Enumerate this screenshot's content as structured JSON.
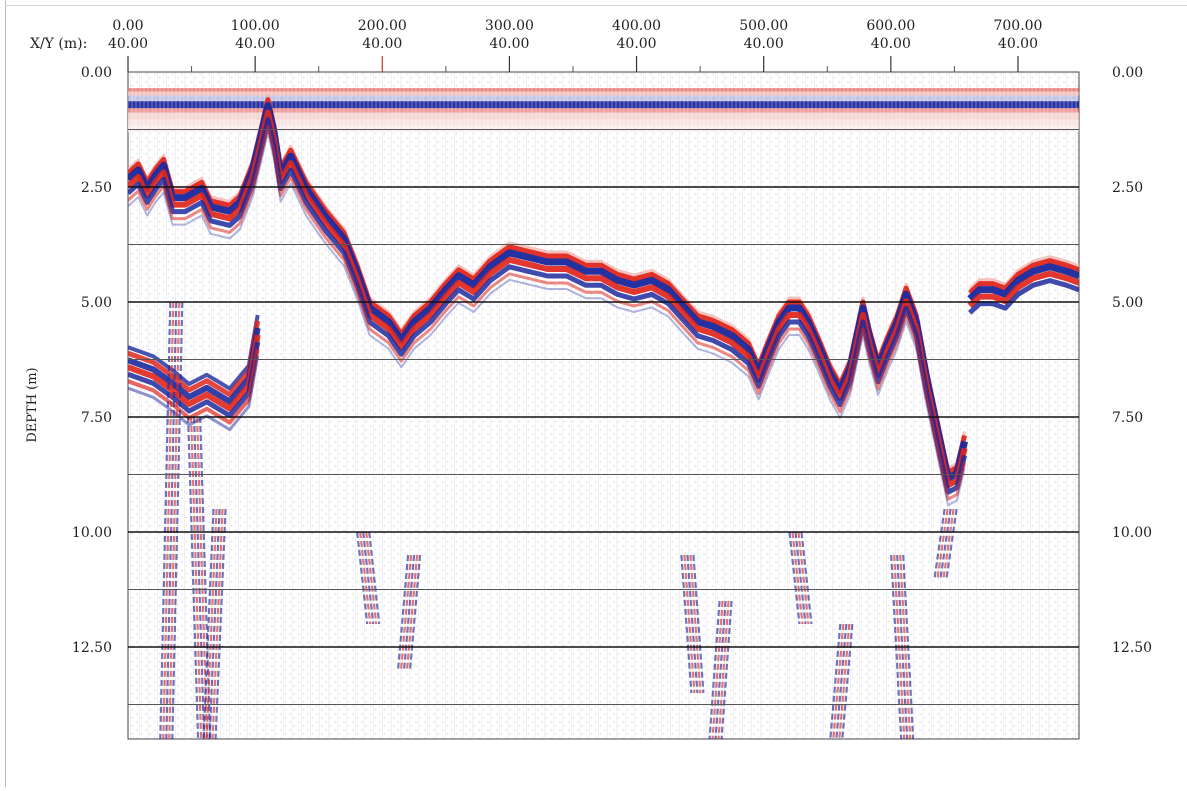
{
  "chart_data": {
    "type": "heatmap",
    "title": "",
    "xlabel_prefix": "X/Y (m):",
    "ylabel": "DEPTH (m)",
    "x_ticks": [
      {
        "x": "0.00",
        "y": "40.00"
      },
      {
        "x": "100.00",
        "y": "40.00"
      },
      {
        "x": "200.00",
        "y": "40.00"
      },
      {
        "x": "300.00",
        "y": "40.00"
      },
      {
        "x": "400.00",
        "y": "40.00"
      },
      {
        "x": "500.00",
        "y": "40.00"
      },
      {
        "x": "600.00",
        "y": "40.00"
      },
      {
        "x": "700.00",
        "y": "40.00"
      }
    ],
    "x_tick_values": [
      0,
      100,
      200,
      300,
      400,
      500,
      600,
      700
    ],
    "xlim": [
      0,
      748
    ],
    "y_ticks": [
      "0.00",
      "2.50",
      "5.00",
      "7.50",
      "10.00",
      "12.50"
    ],
    "y_tick_values": [
      0,
      2.5,
      5,
      7.5,
      10,
      12.5
    ],
    "ylim": [
      0,
      14.5
    ],
    "y_inverted": true,
    "grid": true,
    "colormap": {
      "positive": "#e0261c",
      "negative": "#1d2a9e",
      "zero": "#ffffff"
    },
    "surface_band": {
      "top_depth": 0.35,
      "bottom_depth": 1.3
    },
    "primary_reflector": {
      "name": "",
      "points": [
        [
          0,
          2.2
        ],
        [
          8,
          2.0
        ],
        [
          15,
          2.4
        ],
        [
          22,
          2.1
        ],
        [
          28,
          1.9
        ],
        [
          35,
          2.6
        ],
        [
          45,
          2.6
        ],
        [
          58,
          2.4
        ],
        [
          65,
          2.8
        ],
        [
          80,
          2.9
        ],
        [
          88,
          2.7
        ],
        [
          98,
          2.0
        ],
        [
          105,
          1.2
        ],
        [
          110,
          0.6
        ],
        [
          115,
          1.2
        ],
        [
          120,
          2.1
        ],
        [
          128,
          1.7
        ],
        [
          140,
          2.4
        ],
        [
          155,
          3.0
        ],
        [
          170,
          3.5
        ],
        [
          180,
          4.2
        ],
        [
          190,
          5.0
        ],
        [
          205,
          5.3
        ],
        [
          215,
          5.7
        ],
        [
          225,
          5.3
        ],
        [
          238,
          5.0
        ],
        [
          250,
          4.6
        ],
        [
          260,
          4.3
        ],
        [
          272,
          4.5
        ],
        [
          285,
          4.1
        ],
        [
          300,
          3.8
        ],
        [
          315,
          3.9
        ],
        [
          330,
          4.0
        ],
        [
          345,
          4.0
        ],
        [
          360,
          4.2
        ],
        [
          372,
          4.2
        ],
        [
          385,
          4.4
        ],
        [
          398,
          4.5
        ],
        [
          412,
          4.4
        ],
        [
          425,
          4.6
        ],
        [
          438,
          5.0
        ],
        [
          448,
          5.3
        ],
        [
          460,
          5.4
        ],
        [
          475,
          5.6
        ],
        [
          488,
          5.9
        ],
        [
          496,
          6.4
        ],
        [
          503,
          5.9
        ],
        [
          512,
          5.3
        ],
        [
          520,
          5.0
        ],
        [
          528,
          5.0
        ],
        [
          535,
          5.3
        ],
        [
          543,
          5.8
        ],
        [
          552,
          6.4
        ],
        [
          560,
          6.8
        ],
        [
          568,
          6.3
        ],
        [
          578,
          5.0
        ],
        [
          583,
          5.6
        ],
        [
          590,
          6.3
        ],
        [
          597,
          5.8
        ],
        [
          605,
          5.3
        ],
        [
          612,
          4.7
        ],
        [
          620,
          5.3
        ],
        [
          628,
          6.5
        ],
        [
          638,
          7.8
        ],
        [
          645,
          8.7
        ],
        [
          652,
          8.6
        ],
        [
          658,
          7.9
        ]
      ]
    },
    "secondary_reflector": {
      "name": "",
      "points": [
        [
          662,
          4.8
        ],
        [
          670,
          4.6
        ],
        [
          680,
          4.6
        ],
        [
          690,
          4.7
        ],
        [
          700,
          4.4
        ],
        [
          712,
          4.2
        ],
        [
          725,
          4.1
        ],
        [
          738,
          4.2
        ],
        [
          748,
          4.3
        ]
      ]
    },
    "shallow_left_reflector": {
      "name": "",
      "points": [
        [
          0,
          6.2
        ],
        [
          20,
          6.4
        ],
        [
          35,
          6.7
        ],
        [
          48,
          7.0
        ],
        [
          62,
          6.8
        ],
        [
          80,
          7.1
        ],
        [
          95,
          6.6
        ],
        [
          102,
          5.5
        ]
      ]
    },
    "diffraction_events": [
      {
        "x": 38,
        "depth_top": 5.0,
        "depth_bottom": 14.5
      },
      {
        "x": 52,
        "depth_top": 7.5,
        "depth_bottom": 14.5
      },
      {
        "x": 72,
        "depth_top": 9.5,
        "depth_bottom": 14.5
      },
      {
        "x": 185,
        "depth_top": 10.0,
        "depth_bottom": 12.0
      },
      {
        "x": 225,
        "depth_top": 10.5,
        "depth_bottom": 13.0
      },
      {
        "x": 440,
        "depth_top": 10.5,
        "depth_bottom": 13.5
      },
      {
        "x": 470,
        "depth_top": 11.5,
        "depth_bottom": 14.5
      },
      {
        "x": 525,
        "depth_top": 10.0,
        "depth_bottom": 12.0
      },
      {
        "x": 565,
        "depth_top": 12.0,
        "depth_bottom": 14.5
      },
      {
        "x": 605,
        "depth_top": 10.5,
        "depth_bottom": 14.5
      },
      {
        "x": 647,
        "depth_top": 9.5,
        "depth_bottom": 11.0
      }
    ]
  }
}
